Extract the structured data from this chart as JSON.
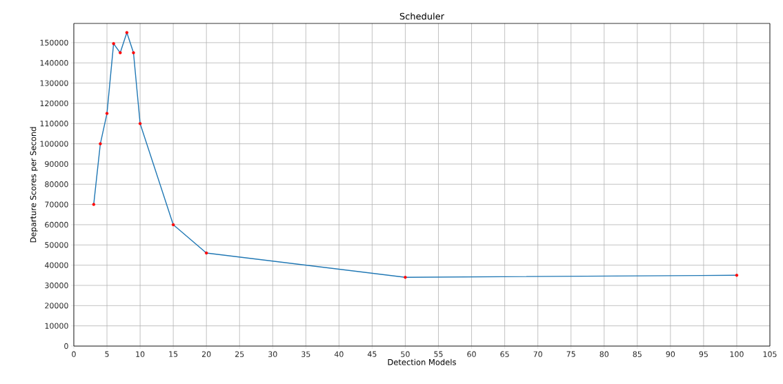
{
  "chart_data": {
    "type": "line",
    "title": "Scheduler",
    "xlabel": "Detection Models",
    "ylabel": "Departure Scores per Second",
    "series": [
      {
        "color": "#1f77b4",
        "marker": "none",
        "x": [
          3,
          4,
          5,
          6,
          7,
          8,
          9,
          10,
          15,
          20,
          50,
          100
        ],
        "values": [
          70000,
          100000,
          115000,
          149500,
          145000,
          155000,
          145000,
          110000,
          60000,
          46000,
          34000,
          35000
        ]
      },
      {
        "type": "scatter",
        "color": "#ff0000",
        "marker": "circle",
        "x": [
          3,
          4,
          5,
          6,
          7,
          8,
          9,
          10,
          15,
          20,
          50,
          100
        ],
        "values": [
          70000,
          100000,
          115000,
          149500,
          145000,
          155000,
          145000,
          110000,
          60000,
          46000,
          34000,
          35000
        ]
      }
    ],
    "xlim": [
      0,
      105
    ],
    "ylim": [
      0,
      159500
    ],
    "xticks": [
      0,
      5,
      10,
      15,
      20,
      25,
      30,
      35,
      40,
      45,
      50,
      55,
      60,
      65,
      70,
      75,
      80,
      85,
      90,
      95,
      100,
      105
    ],
    "yticks": [
      0,
      10000,
      20000,
      30000,
      40000,
      50000,
      60000,
      70000,
      80000,
      90000,
      100000,
      110000,
      120000,
      130000,
      140000,
      150000
    ],
    "grid": true
  }
}
